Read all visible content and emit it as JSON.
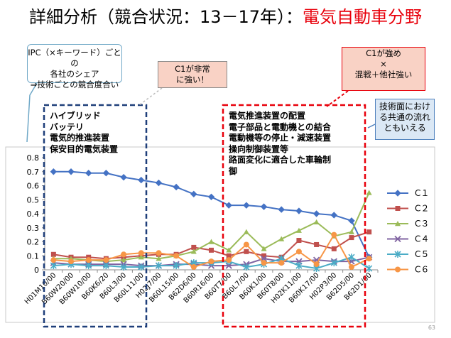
{
  "slide": {
    "title_main": "詳細分析（競合状況：13－17年）：",
    "title_accent": "電気自動車分野",
    "callout_ipc": [
      "IPC（×キーワード）ごとの",
      "各社のシェア",
      "⇒技術ごとの競合度合い"
    ],
    "callout_c1": [
      "C1が非常",
      "に強い！"
    ],
    "callout_c1mix": [
      "C1が強め",
      "×",
      "混戦＋他社強い"
    ],
    "callout_common": [
      "技術面におけ",
      "る共通の流れ",
      "ともいえる"
    ],
    "left_group": [
      "ハイブリッド",
      "バッテリ",
      "電気的推進装置",
      "保安目的電気装置"
    ],
    "right_group": [
      "電気推進装置の配置",
      "電子部品と電動機との結合",
      "電動機等の停止・減速装置",
      "操向制御装置等",
      "路面変化に適合した車輪制",
      "御"
    ],
    "page_number": "63"
  },
  "chart_data": {
    "type": "line",
    "categories": [
      "H01M10/00",
      "B60W20/00",
      "B60W10/00",
      "B60K6/20",
      "B60L3/00",
      "B60L11/00",
      "H02J7/00",
      "B60L15/00",
      "B62D6/00",
      "B60R16/00",
      "B60T7/00",
      "B60L7/00",
      "B60K1/00",
      "B60T8/00",
      "H02K11/00",
      "B60K17/00",
      "H02P3/00",
      "B62D5/00",
      "B62D1/00"
    ],
    "ylim": [
      0,
      0.8
    ],
    "yticks": [
      "0",
      "0.1",
      "0.2",
      "0.3",
      "0.4",
      "0.5",
      "0.6",
      "0.7",
      "0.8"
    ],
    "grid": false,
    "legend": "right",
    "series": [
      {
        "name": "C１",
        "color": "#4472c4",
        "marker": "diamond",
        "values": [
          0.7,
          0.7,
          0.69,
          0.69,
          0.66,
          0.64,
          0.62,
          0.59,
          0.54,
          0.52,
          0.46,
          0.46,
          0.45,
          0.43,
          0.42,
          0.4,
          0.39,
          0.35,
          0.09
        ]
      },
      {
        "name": "C２",
        "color": "#c0504d",
        "marker": "square",
        "values": [
          0.11,
          0.09,
          0.09,
          0.08,
          0.09,
          0.1,
          0.11,
          0.11,
          0.16,
          0.14,
          0.1,
          0.13,
          0.1,
          0.09,
          0.21,
          0.18,
          0.15,
          0.23,
          0.27
        ]
      },
      {
        "name": "C３",
        "color": "#9bbb59",
        "marker": "triangle",
        "values": [
          0.08,
          0.08,
          0.07,
          0.06,
          0.07,
          0.09,
          0.08,
          0.1,
          0.13,
          0.2,
          0.14,
          0.27,
          0.15,
          0.22,
          0.28,
          0.34,
          0.24,
          0.27,
          0.55
        ]
      },
      {
        "name": "C４",
        "color": "#8064a2",
        "marker": "x",
        "values": [
          0.05,
          0.04,
          0.04,
          0.04,
          0.04,
          0.03,
          0.03,
          0.04,
          0.04,
          0.03,
          0.03,
          0.04,
          0.08,
          0.06,
          0.06,
          0.07,
          0.06,
          0.06,
          0.09
        ]
      },
      {
        "name": "C５",
        "color": "#4bacc6",
        "marker": "asterisk",
        "values": [
          0.03,
          0.04,
          0.03,
          0.03,
          0.02,
          0.02,
          0.03,
          0.03,
          0.05,
          0.05,
          0.06,
          0.02,
          0.04,
          0.08,
          0.03,
          0.01,
          0.05,
          0.09,
          0.01
        ]
      },
      {
        "name": "C６",
        "color": "#f79646",
        "marker": "circle",
        "values": [
          0.07,
          0.06,
          0.07,
          0.07,
          0.11,
          0.12,
          0.12,
          0.1,
          0.02,
          0.06,
          0.07,
          0.18,
          0.05,
          0.05,
          0.13,
          0.04,
          0.25,
          0.02,
          0.08
        ]
      }
    ]
  }
}
